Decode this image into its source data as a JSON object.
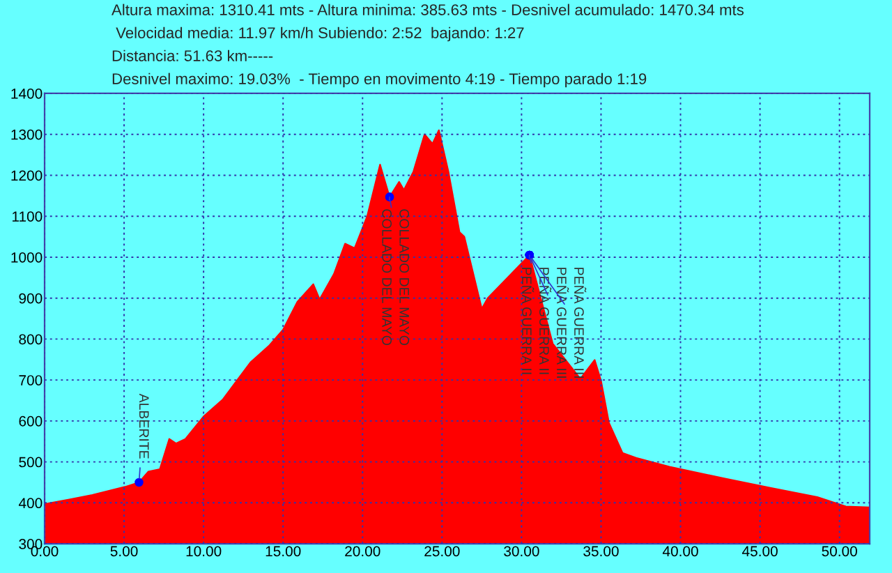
{
  "chart_data": {
    "type": "area",
    "x": [
      0,
      1.55,
      3.0,
      5.06,
      5.94,
      6.52,
      7.25,
      7.84,
      8.27,
      8.86,
      10.03,
      11.2,
      12.08,
      12.95,
      14.1,
      15.0,
      15.9,
      16.9,
      17.3,
      18.2,
      18.9,
      19.5,
      20.3,
      21.1,
      21.7,
      22.3,
      22.6,
      23.2,
      23.9,
      24.4,
      24.8,
      25.4,
      26.1,
      26.4,
      27.5,
      27.87,
      30.5,
      31.96,
      33.7,
      34.6,
      35.0,
      35.5,
      36.35,
      37.2,
      39.3,
      42.8,
      45.7,
      48.6,
      50.4,
      51.9
    ],
    "series": [
      {
        "color": "#ff0000",
        "values": [
          397,
          408,
          419,
          439,
          450,
          476,
          482,
          556,
          545,
          556,
          612,
          652,
          698,
          743,
          783,
          823,
          891,
          934,
          897,
          959,
          1033,
          1022,
          1101,
          1226,
          1147,
          1184,
          1164,
          1209,
          1300,
          1277,
          1310,
          1209,
          1061,
          1050,
          874,
          900,
          1005,
          789,
          703,
          749,
          698,
          595,
          522,
          510,
          488,
          459,
          436,
          414,
          391,
          389
        ]
      }
    ],
    "xlim": [
      0,
      51.9
    ],
    "xticks": [
      {
        "value": 0,
        "label": "0.00"
      },
      {
        "value": 5,
        "label": "5.00"
      },
      {
        "value": 10,
        "label": "10.00"
      },
      {
        "value": 15,
        "label": "15.00"
      },
      {
        "value": 20,
        "label": "20.00"
      },
      {
        "value": 25,
        "label": "25.00"
      },
      {
        "value": 30,
        "label": "30.00"
      },
      {
        "value": 35,
        "label": "35.00"
      },
      {
        "value": 40,
        "label": "40.00"
      },
      {
        "value": 45,
        "label": "45.00"
      },
      {
        "value": 50,
        "label": "50.00"
      }
    ],
    "ylim": [
      300,
      1400
    ],
    "yticks": [
      300,
      400,
      500,
      600,
      700,
      800,
      900,
      1000,
      1100,
      1200,
      1300,
      1400
    ],
    "grid": true,
    "annotations": [
      "Altura maxima: 1310.41 mts - Altura minima: 385.63 mts - Desnivel acumulado: 1470.34 mts",
      " Velocidad media: 11.97 km/h Subiendo: 2:52  bajando: 1:27",
      "Distancia: 51.63 km-----",
      "Desnivel maximo: 19.03%  - Tiempo en movimento 4:19 - Tiempo parado 1:19",
      {
        "text": "ALBERITE",
        "x": 5.94,
        "y": 450
      },
      {
        "text": "COLLADO DEL MAYO",
        "x": 21.7,
        "y": 1147
      },
      {
        "text": "COLLADO DEL MAYO",
        "x": 21.7,
        "y": 1147
      },
      {
        "text": "PEÑA GUERRA II",
        "x": 30.5,
        "y": 1005
      },
      {
        "text": "PEÑA GUERRA II",
        "x": 30.5,
        "y": 1005
      },
      {
        "text": "PEÑA GUERRA III",
        "x": 30.5,
        "y": 1005
      },
      {
        "text": "PEÑA GUERRA III",
        "x": 30.5,
        "y": 1005
      }
    ]
  }
}
